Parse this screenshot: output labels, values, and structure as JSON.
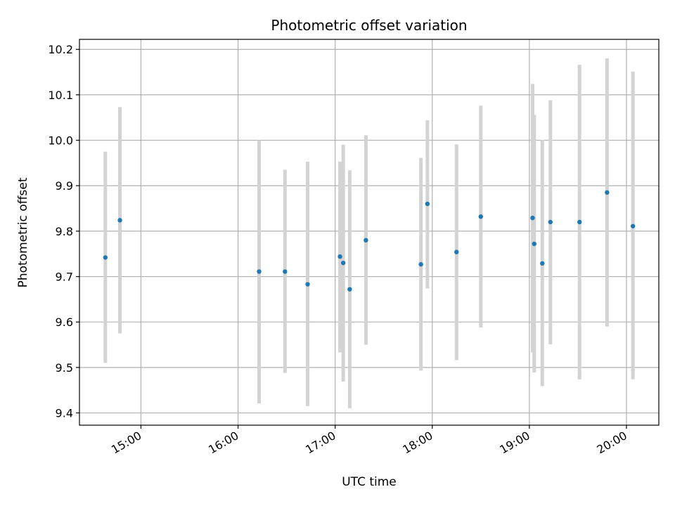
{
  "chart_data": {
    "type": "scatter",
    "title": "Photometric offset variation",
    "xlabel": "UTC time",
    "ylabel": "Photometric offset",
    "x_axis_type": "time",
    "xlim": [
      "14:22",
      "20:20"
    ],
    "ylim": [
      9.373,
      10.222
    ],
    "x_ticks": [
      "15:00",
      "16:00",
      "17:00",
      "18:00",
      "19:00",
      "20:00"
    ],
    "y_ticks": [
      "9.4",
      "9.5",
      "9.6",
      "9.7",
      "9.8",
      "9.9",
      "10.0",
      "10.1",
      "10.2"
    ],
    "grid": true,
    "colors": {
      "point": "#1f77b4",
      "errorbar": "#d3d3d3",
      "grid": "#b0b0b0",
      "axes": "#000000"
    },
    "points": [
      {
        "x": "14:38",
        "y": 9.742,
        "ylow": 9.51,
        "yhigh": 9.975
      },
      {
        "x": "14:47",
        "y": 9.824,
        "ylow": 9.575,
        "yhigh": 10.073
      },
      {
        "x": "16:13",
        "y": 9.711,
        "ylow": 9.421,
        "yhigh": 10.0
      },
      {
        "x": "16:29",
        "y": 9.711,
        "ylow": 9.488,
        "yhigh": 9.935
      },
      {
        "x": "16:43",
        "y": 9.683,
        "ylow": 9.415,
        "yhigh": 9.953
      },
      {
        "x": "17:03",
        "y": 9.744,
        "ylow": 9.533,
        "yhigh": 9.953
      },
      {
        "x": "17:05",
        "y": 9.73,
        "ylow": 9.469,
        "yhigh": 9.99
      },
      {
        "x": "17:09",
        "y": 9.672,
        "ylow": 9.41,
        "yhigh": 9.934
      },
      {
        "x": "17:19",
        "y": 9.78,
        "ylow": 9.55,
        "yhigh": 10.011
      },
      {
        "x": "17:53",
        "y": 9.727,
        "ylow": 9.493,
        "yhigh": 9.961
      },
      {
        "x": "17:57",
        "y": 9.86,
        "ylow": 9.674,
        "yhigh": 10.044
      },
      {
        "x": "18:15",
        "y": 9.754,
        "ylow": 9.516,
        "yhigh": 9.991
      },
      {
        "x": "18:30",
        "y": 9.832,
        "ylow": 9.588,
        "yhigh": 10.076
      },
      {
        "x": "19:02",
        "y": 9.829,
        "ylow": 9.533,
        "yhigh": 10.124
      },
      {
        "x": "19:03",
        "y": 9.772,
        "ylow": 9.489,
        "yhigh": 10.056
      },
      {
        "x": "19:08",
        "y": 9.729,
        "ylow": 9.459,
        "yhigh": 10.001
      },
      {
        "x": "19:13",
        "y": 9.82,
        "ylow": 9.551,
        "yhigh": 10.088
      },
      {
        "x": "19:31",
        "y": 9.82,
        "ylow": 9.474,
        "yhigh": 10.166
      },
      {
        "x": "19:48",
        "y": 9.885,
        "ylow": 9.59,
        "yhigh": 10.18
      },
      {
        "x": "20:04",
        "y": 9.811,
        "ylow": 9.474,
        "yhigh": 10.151
      }
    ]
  }
}
